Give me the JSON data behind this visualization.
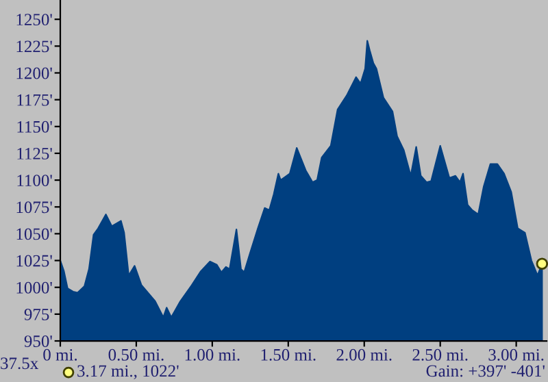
{
  "chart_data": {
    "type": "area",
    "series": [
      {
        "color": "#003f80",
        "x": [
          0,
          0.024,
          0.048,
          0.084,
          0.114,
          0.159,
          0.189,
          0.219,
          0.249,
          0.3,
          0.339,
          0.399,
          0.42,
          0.45,
          0.489,
          0.534,
          0.624,
          0.678,
          0.7,
          0.73,
          0.79,
          0.865,
          0.925,
          0.985,
          1.03,
          1.06,
          1.09,
          1.114,
          1.159,
          1.189,
          1.21,
          1.249,
          1.3,
          1.345,
          1.375,
          1.405,
          1.435,
          1.45,
          1.51,
          1.556,
          1.615,
          1.66,
          1.69,
          1.72,
          1.78,
          1.825,
          1.885,
          1.946,
          1.976,
          2.006,
          2.02,
          2.036,
          2.06,
          2.08,
          2.126,
          2.186,
          2.216,
          2.26,
          2.306,
          2.342,
          2.372,
          2.41,
          2.44,
          2.5,
          2.56,
          2.6,
          2.63,
          2.65,
          2.68,
          2.71,
          2.75,
          2.786,
          2.83,
          2.876,
          2.92,
          2.967,
          3.01,
          3.057,
          3.1,
          3.14,
          3.17
        ],
        "values": [
          1025,
          1015,
          999,
          996,
          995,
          1001,
          1017,
          1049,
          1055,
          1068,
          1057,
          1062,
          1051,
          1011,
          1020,
          1002,
          987,
          972,
          981,
          972,
          987,
          1002,
          1015,
          1024,
          1021,
          1014,
          1019,
          1017,
          1054,
          1017,
          1014,
          1032,
          1055,
          1074,
          1072,
          1087,
          1106,
          1100,
          1106,
          1130,
          1109,
          1098,
          1100,
          1121,
          1132,
          1166,
          1179,
          1196,
          1190,
          1204,
          1230,
          1221,
          1209,
          1204,
          1177,
          1164,
          1141,
          1128,
          1104,
          1131,
          1104,
          1098,
          1099,
          1132,
          1102,
          1104,
          1098,
          1106,
          1077,
          1072,
          1068,
          1094,
          1115,
          1115,
          1106,
          1089,
          1055,
          1051,
          1025,
          1011,
          1022
        ]
      },
      {
        "type": "scatter",
        "color": "#ffff80",
        "x": [
          3.17
        ],
        "values": [
          1022
        ]
      }
    ],
    "xlim": [
      0,
      3.2
    ],
    "ylim": [
      950,
      1268
    ],
    "xticks": [
      {
        "value": 0,
        "label": "0 mi."
      },
      {
        "value": 0.5,
        "label": "0.50 mi."
      },
      {
        "value": 1,
        "label": "1.00 mi."
      },
      {
        "value": 1.5,
        "label": "1.50 mi."
      },
      {
        "value": 2,
        "label": "2.00 mi."
      },
      {
        "value": 2.5,
        "label": "2.50 mi."
      },
      {
        "value": 3,
        "label": "3.00 mi."
      }
    ],
    "yticks": [
      {
        "value": 950,
        "label": "950'"
      },
      {
        "value": 975,
        "label": "975'"
      },
      {
        "value": 1000,
        "label": "1000'"
      },
      {
        "value": 1025,
        "label": "1025'"
      },
      {
        "value": 1050,
        "label": "1050'"
      },
      {
        "value": 1075,
        "label": "1075'"
      },
      {
        "value": 1100,
        "label": "1100'"
      },
      {
        "value": 1125,
        "label": "1125'"
      },
      {
        "value": 1150,
        "label": "1150'"
      },
      {
        "value": 1175,
        "label": "1175'"
      },
      {
        "value": 1200,
        "label": "1200'"
      },
      {
        "value": 1225,
        "label": "1225'"
      },
      {
        "value": 1250,
        "label": "1250'"
      }
    ],
    "grid": false,
    "annotations": [
      "3.17 mi., 1022'",
      "37.5x",
      "Gain: +397' -401'"
    ]
  }
}
